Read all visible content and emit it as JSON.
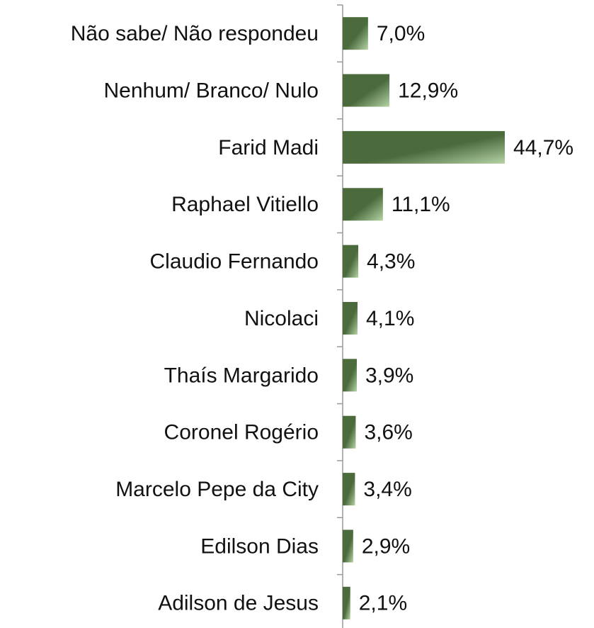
{
  "chart_data": {
    "type": "barh",
    "categories": [
      "Não sabe/ Não respondeu",
      "Nenhum/ Branco/ Nulo",
      "Farid Madi",
      "Raphael Vitiello",
      "Claudio Fernando",
      "Nicolaci",
      "Thaís Margarido",
      "Coronel Rogério",
      "Marcelo Pepe da City",
      "Edilson Dias",
      "Adilson de Jesus"
    ],
    "values": [
      7.0,
      12.9,
      44.7,
      11.1,
      4.3,
      4.1,
      3.9,
      3.6,
      3.4,
      2.9,
      2.1
    ],
    "value_labels": [
      "7,0%",
      "12,9%",
      "44,7%",
      "11,1%",
      "4,3%",
      "4,1%",
      "3,9%",
      "3,6%",
      "3,4%",
      "2,9%",
      "2,1%"
    ],
    "color": "#4b6b3d"
  }
}
